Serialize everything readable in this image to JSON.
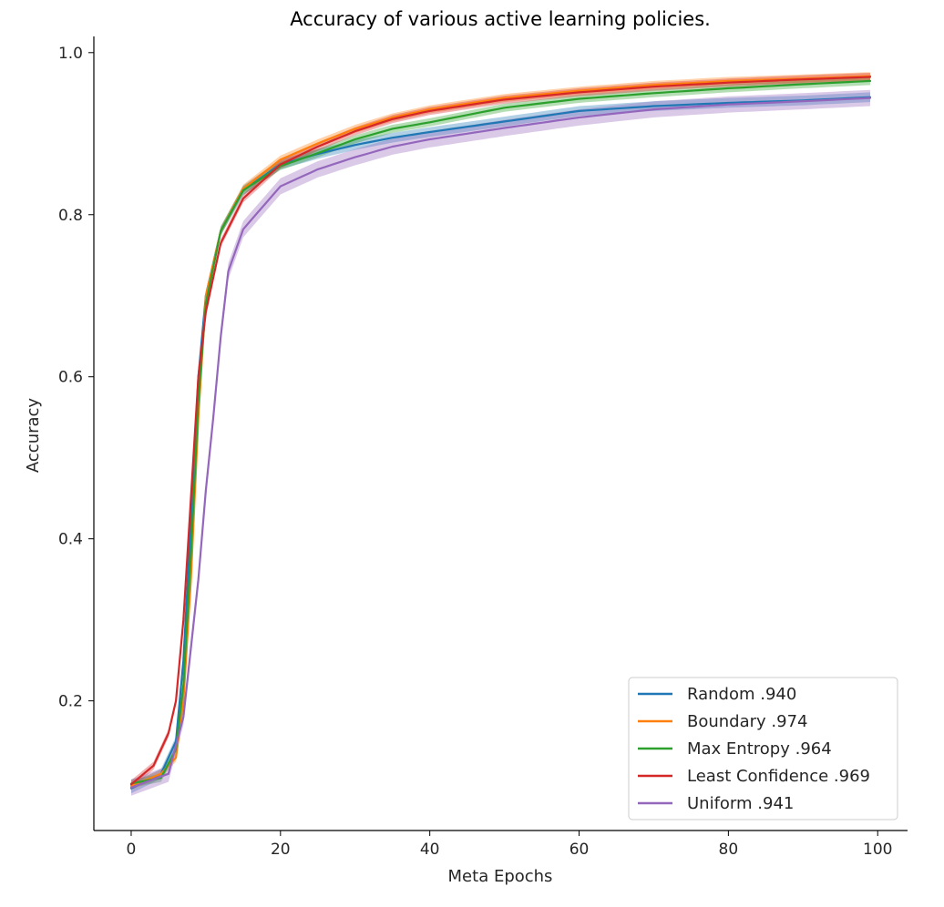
{
  "chart_data": {
    "type": "line",
    "title": "Accuracy of various active learning policies.",
    "xlabel": "Meta Epochs",
    "ylabel": "Accuracy",
    "xlim": [
      -5,
      104
    ],
    "ylim": [
      0.04,
      1.02
    ],
    "xticks": [
      0,
      20,
      40,
      60,
      80,
      100
    ],
    "yticks": [
      0.2,
      0.4,
      0.6,
      0.8,
      1.0
    ],
    "xtick_labels": [
      "0",
      "20",
      "40",
      "60",
      "80",
      "100"
    ],
    "ytick_labels": [
      "0.2",
      "0.4",
      "0.6",
      "0.8",
      "1.0"
    ],
    "grid": false,
    "legend_position": "lower-right",
    "x_range": [
      0,
      99
    ],
    "series": [
      {
        "name": "Random .940",
        "color": "#1f77b4",
        "anchors": [
          [
            0,
            0.092
          ],
          [
            4,
            0.11
          ],
          [
            6,
            0.15
          ],
          [
            7,
            0.25
          ],
          [
            8,
            0.42
          ],
          [
            9,
            0.6
          ],
          [
            10,
            0.7
          ],
          [
            12,
            0.78
          ],
          [
            15,
            0.83
          ],
          [
            20,
            0.862
          ],
          [
            25,
            0.875
          ],
          [
            30,
            0.886
          ],
          [
            35,
            0.895
          ],
          [
            40,
            0.902
          ],
          [
            50,
            0.915
          ],
          [
            60,
            0.928
          ],
          [
            70,
            0.934
          ],
          [
            80,
            0.938
          ],
          [
            90,
            0.941
          ],
          [
            99,
            0.945
          ]
        ],
        "band": 0.006
      },
      {
        "name": "Boundary .974",
        "color": "#ff7f0e",
        "anchors": [
          [
            0,
            0.095
          ],
          [
            4,
            0.11
          ],
          [
            6,
            0.13
          ],
          [
            7,
            0.2
          ],
          [
            8,
            0.35
          ],
          [
            9,
            0.55
          ],
          [
            10,
            0.7
          ],
          [
            12,
            0.78
          ],
          [
            15,
            0.832
          ],
          [
            20,
            0.868
          ],
          [
            25,
            0.888
          ],
          [
            30,
            0.906
          ],
          [
            35,
            0.92
          ],
          [
            40,
            0.93
          ],
          [
            50,
            0.944
          ],
          [
            60,
            0.953
          ],
          [
            70,
            0.96
          ],
          [
            80,
            0.965
          ],
          [
            90,
            0.968
          ],
          [
            99,
            0.971
          ]
        ],
        "band": 0.005
      },
      {
        "name": "Max Entropy .964",
        "color": "#2ca02c",
        "anchors": [
          [
            0,
            0.098
          ],
          [
            4,
            0.105
          ],
          [
            6,
            0.14
          ],
          [
            7,
            0.22
          ],
          [
            8,
            0.38
          ],
          [
            9,
            0.57
          ],
          [
            10,
            0.69
          ],
          [
            12,
            0.78
          ],
          [
            15,
            0.83
          ],
          [
            20,
            0.86
          ],
          [
            25,
            0.876
          ],
          [
            30,
            0.893
          ],
          [
            35,
            0.906
          ],
          [
            40,
            0.914
          ],
          [
            50,
            0.932
          ],
          [
            60,
            0.943
          ],
          [
            70,
            0.95
          ],
          [
            80,
            0.956
          ],
          [
            90,
            0.961
          ],
          [
            99,
            0.965
          ]
        ],
        "band": 0.005
      },
      {
        "name": "Least Confidence .969",
        "color": "#d62728",
        "anchors": [
          [
            0,
            0.097
          ],
          [
            3,
            0.12
          ],
          [
            5,
            0.16
          ],
          [
            6,
            0.2
          ],
          [
            7,
            0.3
          ],
          [
            8,
            0.45
          ],
          [
            9,
            0.6
          ],
          [
            10,
            0.68
          ],
          [
            12,
            0.765
          ],
          [
            15,
            0.82
          ],
          [
            20,
            0.862
          ],
          [
            25,
            0.884
          ],
          [
            30,
            0.903
          ],
          [
            35,
            0.918
          ],
          [
            40,
            0.928
          ],
          [
            50,
            0.942
          ],
          [
            60,
            0.951
          ],
          [
            70,
            0.958
          ],
          [
            80,
            0.963
          ],
          [
            90,
            0.967
          ],
          [
            99,
            0.97
          ]
        ],
        "band": 0.005
      },
      {
        "name": "Uniform .941",
        "color": "#9467bd",
        "anchors": [
          [
            0,
            0.093
          ],
          [
            5,
            0.11
          ],
          [
            7,
            0.18
          ],
          [
            9,
            0.35
          ],
          [
            10,
            0.46
          ],
          [
            11,
            0.55
          ],
          [
            12,
            0.65
          ],
          [
            13,
            0.73
          ],
          [
            15,
            0.782
          ],
          [
            20,
            0.835
          ],
          [
            25,
            0.856
          ],
          [
            30,
            0.871
          ],
          [
            35,
            0.884
          ],
          [
            40,
            0.893
          ],
          [
            50,
            0.907
          ],
          [
            60,
            0.92
          ],
          [
            70,
            0.93
          ],
          [
            80,
            0.936
          ],
          [
            90,
            0.94
          ],
          [
            99,
            0.944
          ]
        ],
        "band": 0.01
      }
    ]
  }
}
